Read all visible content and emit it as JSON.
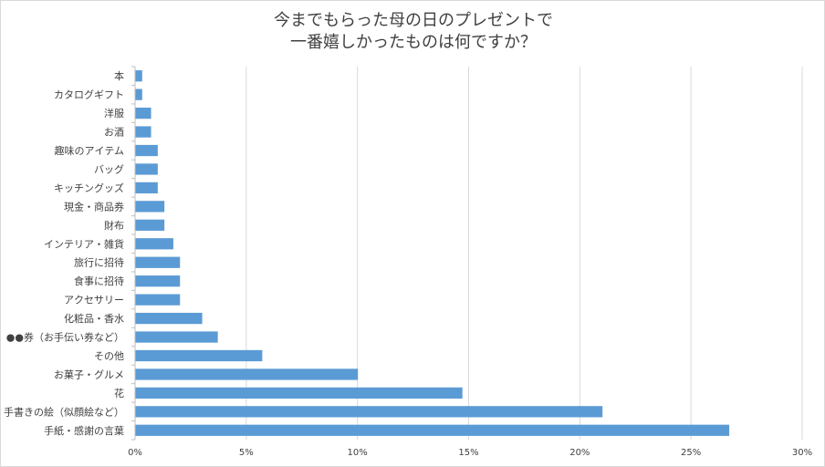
{
  "chart_data": {
    "type": "bar",
    "orientation": "horizontal",
    "title_lines": [
      "今までもらった母の日のプレゼントで",
      "一番嬉しかったものは何ですか？"
    ],
    "categories": [
      "本",
      "カタログギフト",
      "洋服",
      "お酒",
      "趣味のアイテム",
      "バッグ",
      "キッチングッズ",
      "現金・商品券",
      "財布",
      "インテリア・雑貨",
      "旅行に招待",
      "食事に招待",
      "アクセサリー",
      "化粧品・香水",
      "●●券（お手伝い券など）",
      "その他",
      "お菓子・グルメ",
      "花",
      "手書きの絵（似顔絵など）",
      "手紙・感謝の言葉"
    ],
    "values": [
      0.3,
      0.3,
      0.7,
      0.7,
      1.0,
      1.0,
      1.0,
      1.3,
      1.3,
      1.7,
      2.0,
      2.0,
      2.0,
      3.0,
      3.7,
      5.7,
      10.0,
      14.7,
      21.0,
      26.7
    ],
    "x_ticks": [
      "0%",
      "5%",
      "10%",
      "15%",
      "20%",
      "25%",
      "30%"
    ],
    "xlim": [
      0,
      30
    ],
    "unit": "%",
    "grid": true,
    "bar_color": "#5B9BD5",
    "grid_color": "#D9D9D9",
    "axis_color": "#BFBFBF"
  }
}
